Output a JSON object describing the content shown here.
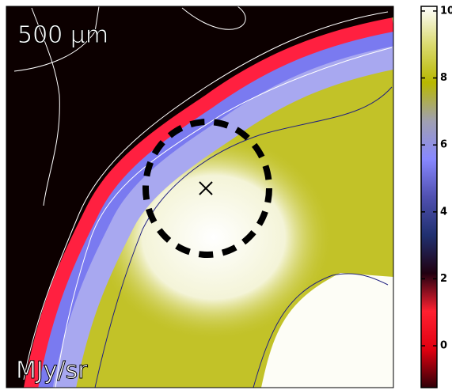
{
  "chart_data": {
    "type": "heatmap",
    "annotations": [
      "500 μm",
      "MJy/sr"
    ],
    "colorbar": {
      "ylim": [
        -1.25,
        10.14
      ],
      "yticks": [
        0,
        2,
        4,
        6,
        8,
        10
      ],
      "colormap": [
        "#300008",
        "#e00010",
        "#ff2030",
        "#200010",
        "#203070",
        "#5050b0",
        "#8888ff",
        "#a0a0b0",
        "#b8b800",
        "#dada70",
        "#ffffff"
      ]
    }
  }
}
